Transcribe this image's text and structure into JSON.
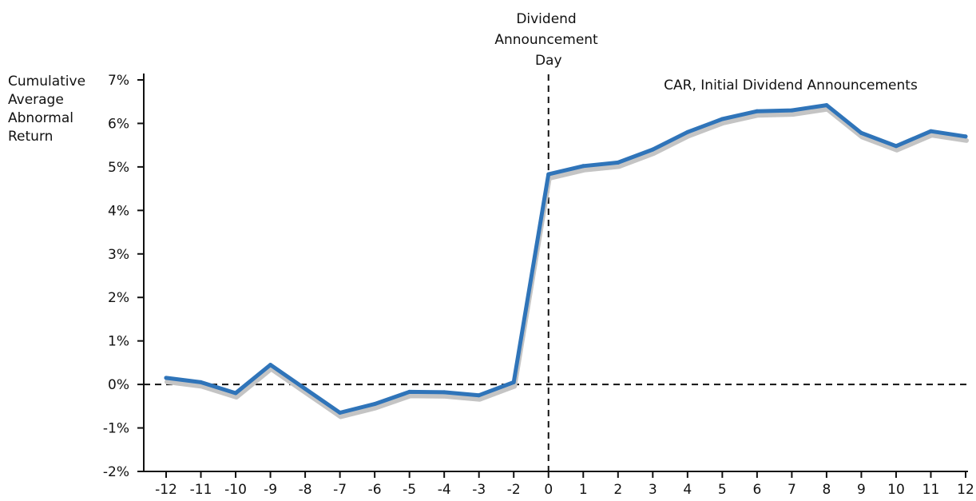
{
  "chart_data": {
    "type": "line",
    "title": "CAR, Initial Dividend Announcements",
    "ylabel_lines": [
      "Cumulative",
      "Average",
      "Abnormal",
      "Return"
    ],
    "event_label_lines": [
      "Dividend",
      "Announcement",
      "Day"
    ],
    "xlabel": "",
    "x": [
      -12,
      -11,
      -10,
      -9,
      -8,
      -7,
      -6,
      -5,
      -4,
      -3,
      -2,
      0,
      1,
      2,
      3,
      4,
      5,
      6,
      7,
      8,
      9,
      10,
      11,
      12
    ],
    "x_tick_labels": [
      "-12",
      "-11",
      "-10",
      "-9",
      "-8",
      "-7",
      "-6",
      "-5",
      "-4",
      "-3",
      "-2",
      "0",
      "1",
      "2",
      "3",
      "4",
      "5",
      "6",
      "7",
      "8",
      "9",
      "10",
      "11",
      "12"
    ],
    "series": [
      {
        "values": [
          0.15,
          0.05,
          -0.2,
          0.45,
          -0.1,
          -0.65,
          -0.45,
          -0.17,
          -0.18,
          -0.25,
          0.05,
          4.83,
          5.02,
          5.1,
          5.4,
          5.8,
          6.1,
          6.28,
          6.3,
          6.42,
          5.78,
          5.48,
          5.82,
          5.7
        ],
        "color": "#2f74b9",
        "shadow_color": "#c4c4c4"
      }
    ],
    "ylim": [
      -2,
      7
    ],
    "y_ticks": [
      -2,
      -1,
      0,
      1,
      2,
      3,
      4,
      5,
      6,
      7
    ],
    "y_tick_labels": [
      "-2%",
      "-1%",
      "0%",
      "1%",
      "2%",
      "3%",
      "4%",
      "5%",
      "6%",
      "7%"
    ],
    "reference_lines": {
      "horizontal_y": 0,
      "vertical_x": 0,
      "style": "dashed"
    },
    "grid": false,
    "legend": "none"
  }
}
